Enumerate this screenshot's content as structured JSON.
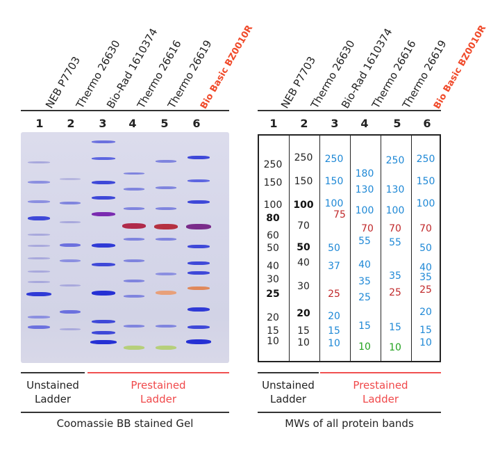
{
  "lane_labels": [
    "NEB P7703",
    "Thermo 26630",
    "Bio-Rad 1610374",
    "Thermo 26616",
    "Thermo 26619",
    "Bio Basic BZ0010R"
  ],
  "lane_numbers": [
    "1",
    "2",
    "3",
    "4",
    "5",
    "6"
  ],
  "table": {
    "lanes": [
      {
        "values": [
          "250",
          "150",
          "100",
          "80",
          "60",
          "50",
          "40",
          "30",
          "25",
          "20",
          "15",
          "10"
        ]
      },
      {
        "values": [
          "250",
          "150",
          "100",
          "70",
          "50",
          "40",
          "30",
          "20",
          "15",
          "10"
        ]
      },
      {
        "values": [
          "250",
          "150",
          "100",
          "75",
          "50",
          "37",
          "25",
          "20",
          "15",
          "10"
        ]
      },
      {
        "values": [
          "180",
          "130",
          "100",
          "70",
          "55",
          "40",
          "35",
          "25",
          "15",
          "10"
        ]
      },
      {
        "values": [
          "250",
          "130",
          "100",
          "70",
          "55",
          "35",
          "25",
          "15",
          "10"
        ]
      },
      {
        "values": [
          "250",
          "150",
          "100",
          "70",
          "50",
          "40",
          "35",
          "25",
          "20",
          "15",
          "10"
        ]
      }
    ]
  },
  "captions": {
    "unstained": [
      "Unstained",
      "Ladder"
    ],
    "prestained": [
      "Prestained",
      "Ladder"
    ],
    "gel_title": "Coomassie BB stained Gel",
    "table_title": "MWs of all protein bands"
  },
  "colors": {
    "brand": "#f04a2a",
    "blue": "#1e88d6",
    "red": "#c0282a",
    "green": "#22a21e",
    "pink_line": "#f05050"
  }
}
